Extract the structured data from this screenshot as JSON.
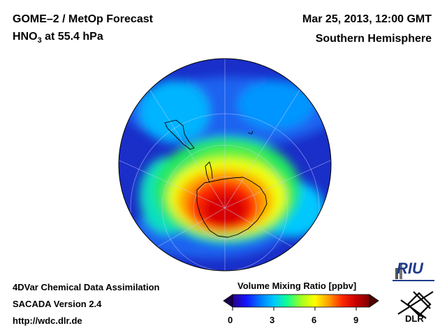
{
  "header": {
    "line1": "GOME–2 / MetOp Forecast",
    "species_prefix": "HNO",
    "species_sub": "3",
    "species_suffix": " at 55.4 hPa",
    "date": "Mar 25, 2013, 12:00 GMT",
    "region": "Southern Hemisphere"
  },
  "footer": {
    "line1": "4DVar Chemical Data Assimilation",
    "line2": "SACADA Version 2.4",
    "line3": "http://wdc.dlr.de"
  },
  "colorbar": {
    "title": "Volume Mixing Ratio [ppbv]",
    "ticks": [
      "0",
      "3",
      "6",
      "9"
    ],
    "min": 0,
    "max": 10,
    "colors": [
      "#2a008c",
      "#1414ff",
      "#0078ff",
      "#00c8ff",
      "#10ff90",
      "#a0ff20",
      "#ffff00",
      "#ffa000",
      "#ff2800",
      "#c80000",
      "#800000"
    ]
  },
  "logos": {
    "riu": "RIU",
    "dlr": "DLR"
  },
  "map_colors": {
    "background": "#1a2ec8",
    "high": "#d80000"
  }
}
